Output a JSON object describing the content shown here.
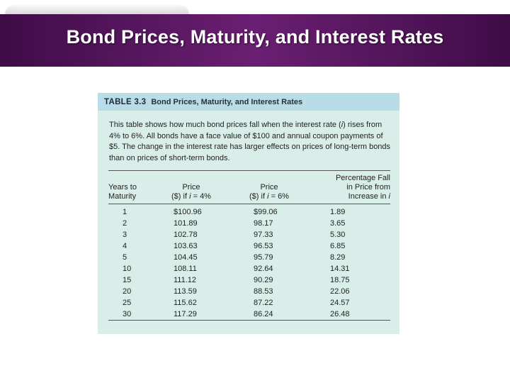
{
  "slide": {
    "title": "Bond Prices, Maturity, and Interest Rates"
  },
  "table": {
    "number": "TABLE 3.3",
    "title": "Bond Prices, Maturity, and Interest Rates",
    "caption": "This table shows how much bond prices fall when the interest rate (i) rises from 4% to 6%. All bonds have a face value of $100 and annual coupon payments of $5. The change in the interest rate has larger effects on prices of long-term bonds than on prices of short-term bonds.",
    "headers": {
      "years": [
        "Years to",
        "Maturity"
      ],
      "price4": [
        "Price",
        "($) if i = 4%"
      ],
      "price6": [
        "Price",
        "($) if i = 6%"
      ],
      "fall": [
        "Percentage Fall",
        "in Price from",
        "Increase in i"
      ]
    },
    "rows": [
      {
        "years": "1",
        "price4": "$100.96",
        "price6": "$99.06",
        "fall": "1.89"
      },
      {
        "years": "2",
        "price4": "101.89",
        "price6": "98.17",
        "fall": "3.65"
      },
      {
        "years": "3",
        "price4": "102.78",
        "price6": "97.33",
        "fall": "5.30"
      },
      {
        "years": "4",
        "price4": "103.63",
        "price6": "96.53",
        "fall": "6.85"
      },
      {
        "years": "5",
        "price4": "104.45",
        "price6": "95.79",
        "fall": "8.29"
      },
      {
        "years": "10",
        "price4": "108.11",
        "price6": "92.64",
        "fall": "14.31"
      },
      {
        "years": "15",
        "price4": "111.12",
        "price6": "90.29",
        "fall": "18.75"
      },
      {
        "years": "20",
        "price4": "113.59",
        "price6": "88.53",
        "fall": "22.06"
      },
      {
        "years": "25",
        "price4": "115.62",
        "price6": "87.22",
        "fall": "24.57"
      },
      {
        "years": "30",
        "price4": "117.29",
        "price6": "86.24",
        "fall": "26.48"
      }
    ]
  }
}
